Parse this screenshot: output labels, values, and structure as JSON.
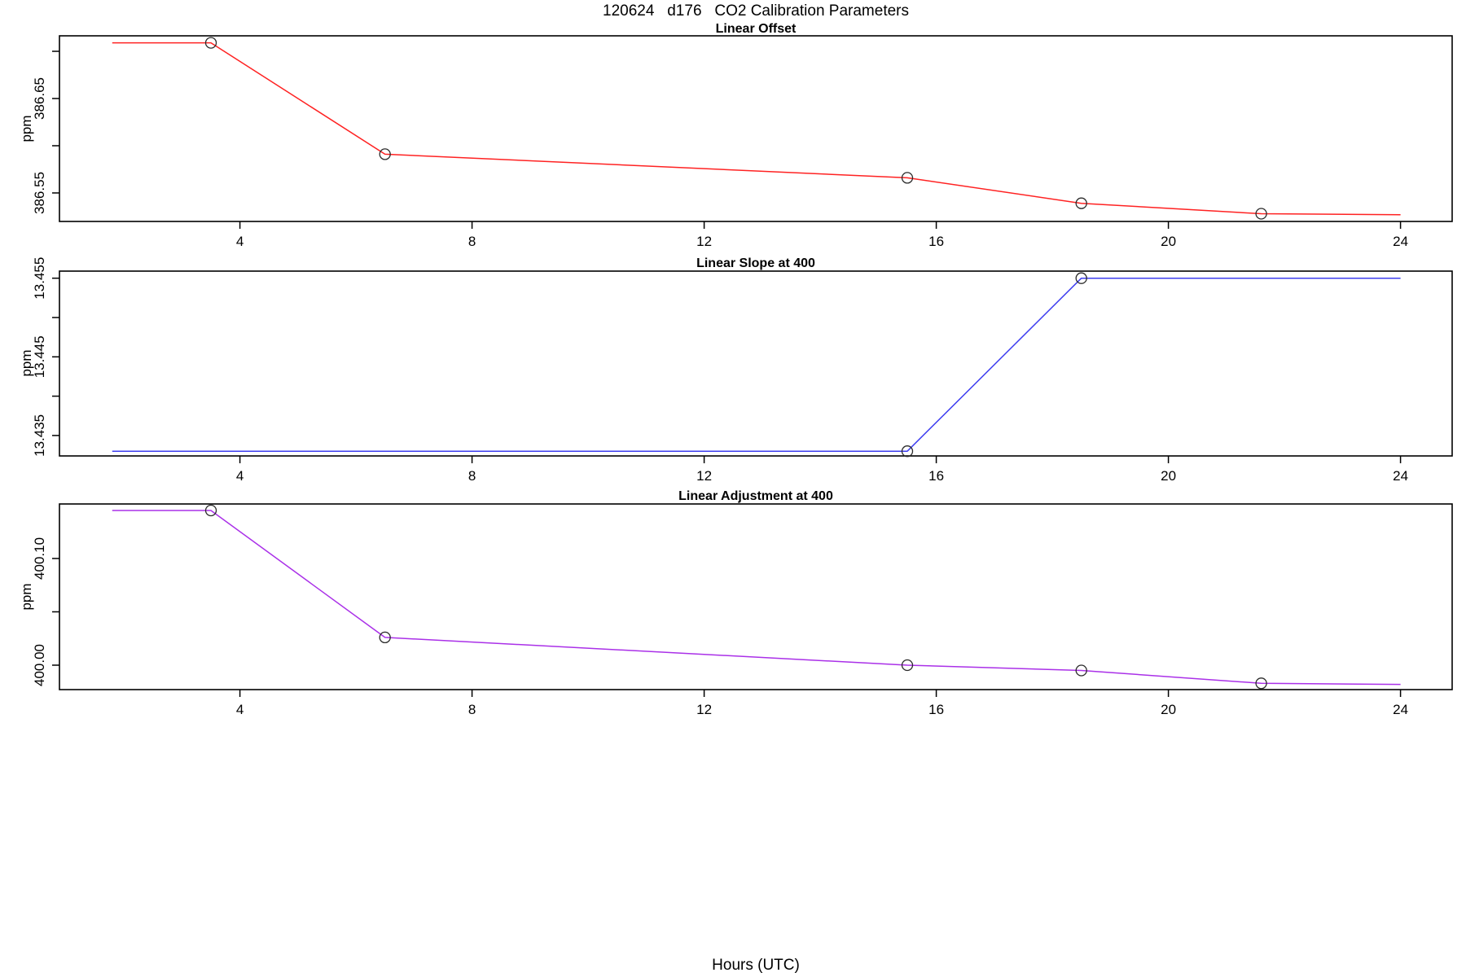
{
  "main_title": "120624   d176   CO2 Calibration Parameters",
  "xlabel": "Hours (UTC)",
  "colors": {
    "offset": "#ff2222",
    "slope": "#3d3df0",
    "adjustment": "#aa30e8",
    "axis": "#000000",
    "point_stroke": "#2a2a2a"
  },
  "x_axis": {
    "ticks": [
      4,
      8,
      12,
      16,
      20,
      24
    ],
    "tick_labels": [
      "4",
      "8",
      "12",
      "16",
      "20",
      "24"
    ],
    "range": [
      0.89,
      24.89
    ]
  },
  "chart_data": [
    {
      "type": "line",
      "id": "linear-offset",
      "title": "Linear Offset",
      "ylabel": "ppm",
      "color_key": "offset",
      "ylim": [
        386.5198,
        386.7164
      ],
      "yticks": [
        {
          "value": 386.7,
          "label": ""
        },
        {
          "value": 386.65,
          "label": "386.65"
        },
        {
          "value": 386.6,
          "label": ""
        },
        {
          "value": 386.55,
          "label": "386.55"
        }
      ],
      "line": {
        "x": [
          1.8,
          3.5,
          6.5,
          15.5,
          18.5,
          21.6,
          24.0
        ],
        "y": [
          386.709,
          386.709,
          386.591,
          386.566,
          386.539,
          386.528,
          386.527
        ]
      },
      "points": {
        "x": [
          3.5,
          6.5,
          15.5,
          18.5,
          21.6
        ],
        "y": [
          386.709,
          386.591,
          386.566,
          386.539,
          386.528
        ]
      }
    },
    {
      "type": "line",
      "id": "linear-slope-at-400",
      "title": "Linear Slope at 400",
      "ylabel": "ppm",
      "color_key": "slope",
      "ylim": [
        13.4324,
        13.4559
      ],
      "yticks": [
        {
          "value": 13.455,
          "label": "13.455"
        },
        {
          "value": 13.45,
          "label": ""
        },
        {
          "value": 13.445,
          "label": "13.445"
        },
        {
          "value": 13.44,
          "label": ""
        },
        {
          "value": 13.435,
          "label": "13.435"
        }
      ],
      "line": {
        "x": [
          1.8,
          15.5,
          18.5,
          24.0
        ],
        "y": [
          13.433,
          13.433,
          13.455,
          13.455
        ]
      },
      "points": {
        "x": [
          15.5,
          18.5
        ],
        "y": [
          13.433,
          13.455
        ]
      }
    },
    {
      "type": "line",
      "id": "linear-adjustment-at-400",
      "title": "Linear Adjustment at 400",
      "ylabel": "ppm",
      "color_key": "adjustment",
      "ylim": [
        399.9771,
        400.1511
      ],
      "yticks": [
        {
          "value": 400.1,
          "label": "400.10"
        },
        {
          "value": 400.05,
          "label": ""
        },
        {
          "value": 400.0,
          "label": "400.00"
        }
      ],
      "line": {
        "x": [
          1.8,
          3.5,
          6.5,
          15.5,
          18.5,
          21.6,
          24.0
        ],
        "y": [
          400.145,
          400.145,
          400.026,
          400.0,
          399.995,
          399.983,
          399.982
        ]
      },
      "points": {
        "x": [
          3.5,
          6.5,
          15.5,
          18.5,
          21.6
        ],
        "y": [
          400.145,
          400.026,
          400.0,
          399.995,
          399.983
        ]
      }
    }
  ]
}
